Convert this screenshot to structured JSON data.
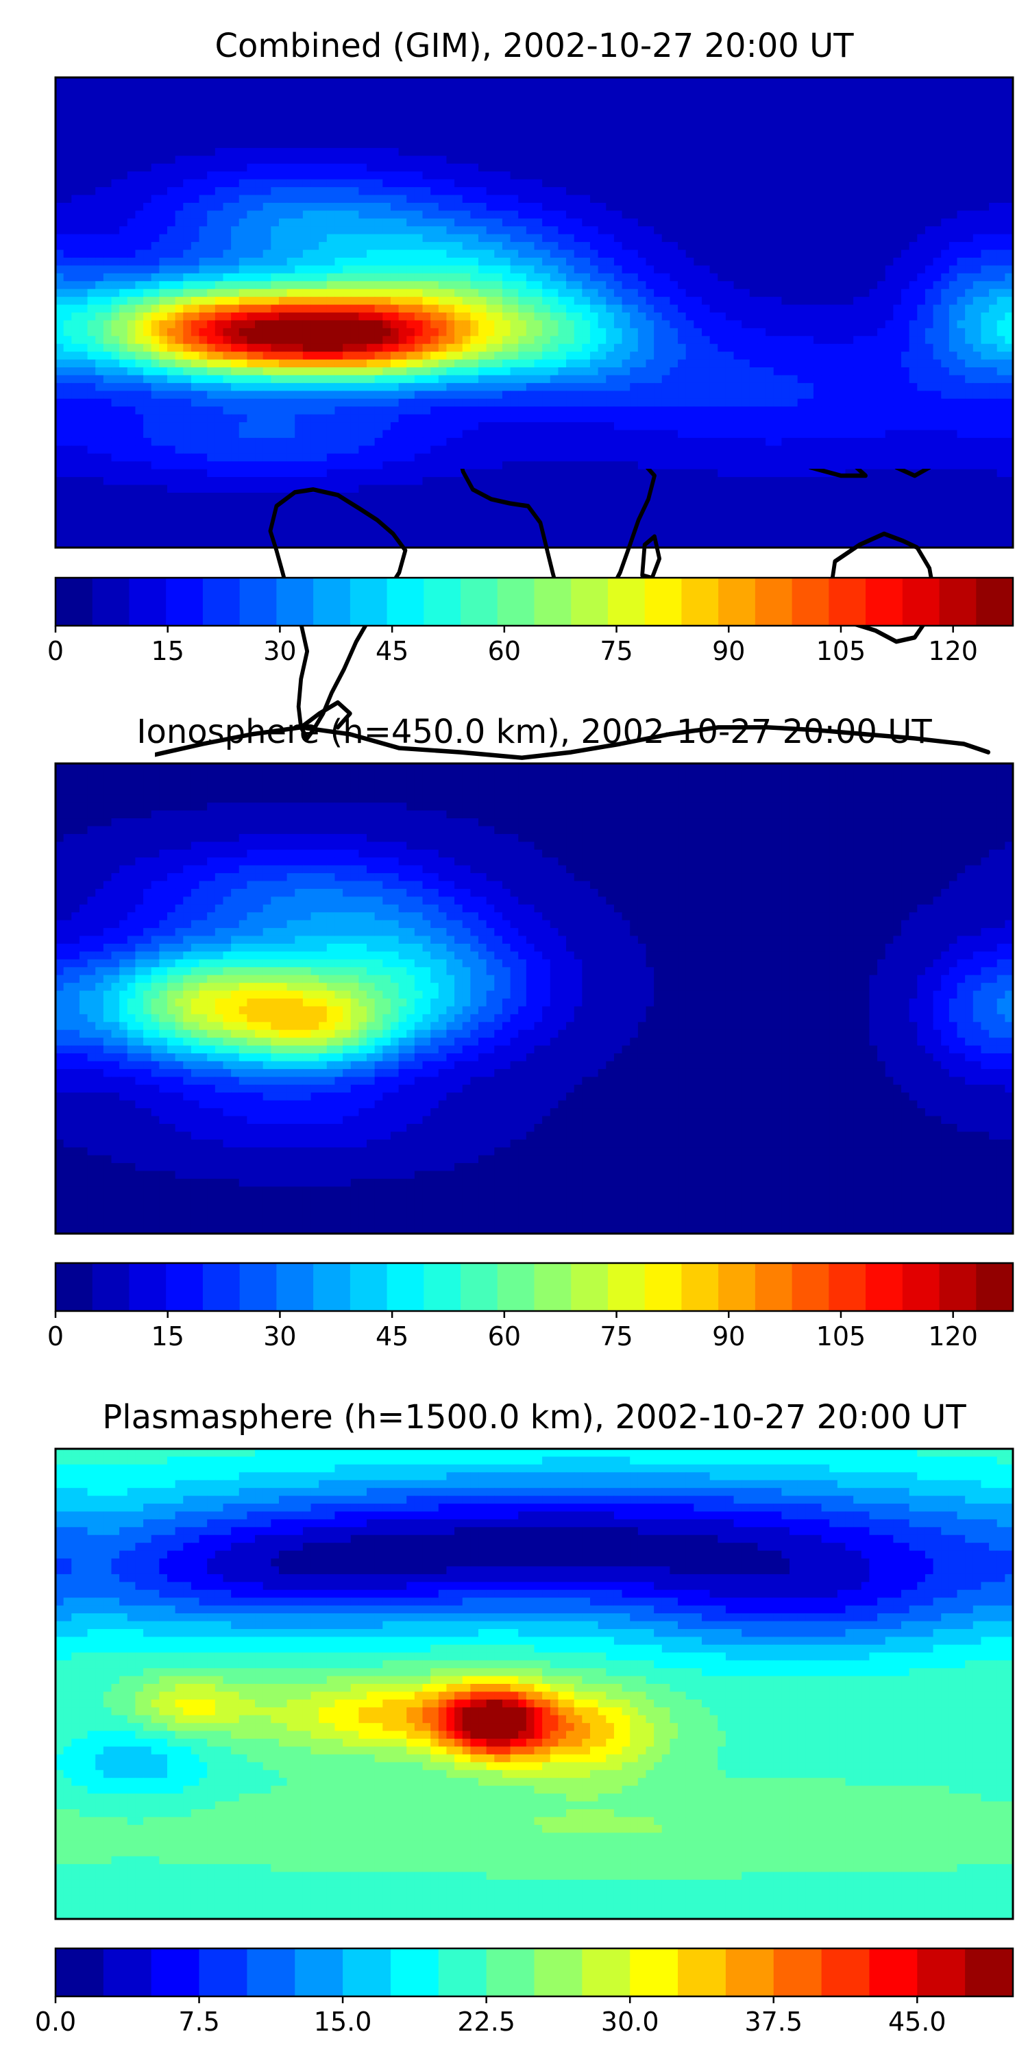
{
  "panels": [
    {
      "title": "Combined (GIM), 2002-10-27 20:00 UT",
      "colorbar": {
        "min": 0,
        "max": 128,
        "levels": 26,
        "ticks": [
          "0",
          "15",
          "30",
          "45",
          "60",
          "75",
          "90",
          "105",
          "120"
        ],
        "tick_values": [
          0,
          15,
          30,
          45,
          60,
          75,
          90,
          105,
          120
        ]
      },
      "field": {
        "background_level": 6,
        "blobs": [
          {
            "lon": -95,
            "lat": -8,
            "a": 72,
            "sx": 40,
            "sy": 12
          },
          {
            "lon": -60,
            "lat": -10,
            "a": 55,
            "sx": 35,
            "sy": 12
          },
          {
            "lon": -135,
            "lat": -5,
            "a": 40,
            "sx": 30,
            "sy": 14
          },
          {
            "lon": -30,
            "lat": 12,
            "a": 35,
            "sx": 40,
            "sy": 18
          },
          {
            "lon": 10,
            "lat": -10,
            "a": 28,
            "sx": 30,
            "sy": 14
          },
          {
            "lon": -90,
            "lat": 35,
            "a": 24,
            "sx": 40,
            "sy": 15
          },
          {
            "lon": 90,
            "lat": -30,
            "a": 14,
            "sx": 60,
            "sy": 20
          },
          {
            "lon": 170,
            "lat": 0,
            "a": 22,
            "sx": 20,
            "sy": 20
          },
          {
            "lon": -100,
            "lat": -48,
            "a": 18,
            "sx": 50,
            "sy": 12
          }
        ]
      }
    },
    {
      "title": "Ionosphere  (h=450.0 km), 2002-10-27 20:00 UT",
      "colorbar": {
        "min": 0,
        "max": 128,
        "levels": 26,
        "ticks": [
          "0",
          "15",
          "30",
          "45",
          "60",
          "75",
          "90",
          "105",
          "120"
        ],
        "tick_values": [
          0,
          15,
          30,
          45,
          60,
          75,
          90,
          105,
          120
        ]
      },
      "field": {
        "background_level": 4,
        "blobs": [
          {
            "lon": -100,
            "lat": -5,
            "a": 50,
            "sx": 40,
            "sy": 16
          },
          {
            "lon": -80,
            "lat": -12,
            "a": 24,
            "sx": 20,
            "sy": 10
          },
          {
            "lon": -130,
            "lat": 0,
            "a": 30,
            "sx": 30,
            "sy": 15
          },
          {
            "lon": -60,
            "lat": 20,
            "a": 18,
            "sx": 30,
            "sy": 20
          },
          {
            "lon": -30,
            "lat": 5,
            "a": 18,
            "sx": 30,
            "sy": 18
          },
          {
            "lon": -100,
            "lat": 40,
            "a": 18,
            "sx": 40,
            "sy": 14
          },
          {
            "lon": 170,
            "lat": -5,
            "a": 16,
            "sx": 18,
            "sy": 18
          },
          {
            "lon": -90,
            "lat": -45,
            "a": 10,
            "sx": 40,
            "sy": 12
          }
        ]
      }
    },
    {
      "title": "Plasmasphere (h=1500.0 km), 2002-10-27 20:00 UT",
      "colorbar": {
        "min": 0,
        "max": 50,
        "levels": 20,
        "ticks": [
          "0.0",
          "7.5",
          "15.0",
          "22.5",
          "30.0",
          "37.5",
          "45.0"
        ],
        "tick_values": [
          0,
          7.5,
          15,
          22.5,
          30,
          37.5,
          45
        ]
      },
      "field": {
        "background_level": 22,
        "blobs": [
          {
            "lon": -15,
            "lat": -15,
            "a": 22,
            "sx": 14,
            "sy": 10
          },
          {
            "lon": -45,
            "lat": -12,
            "a": 12,
            "sx": 40,
            "sy": 10
          },
          {
            "lon": 20,
            "lat": -20,
            "a": 10,
            "sx": 20,
            "sy": 12
          },
          {
            "lon": -130,
            "lat": -8,
            "a": 8,
            "sx": 15,
            "sy": 8
          },
          {
            "lon": 20,
            "lat": 55,
            "a": -19,
            "sx": 120,
            "sy": 18
          },
          {
            "lon": -100,
            "lat": 40,
            "a": -10,
            "sx": 60,
            "sy": 15
          },
          {
            "lon": 100,
            "lat": 30,
            "a": -10,
            "sx": 50,
            "sy": 15
          },
          {
            "lon": -150,
            "lat": -30,
            "a": -6,
            "sx": 20,
            "sy": 10
          },
          {
            "lon": 30,
            "lat": -55,
            "a": 3,
            "sx": 120,
            "sy": 10
          }
        ]
      }
    }
  ],
  "colormap": "jet"
}
